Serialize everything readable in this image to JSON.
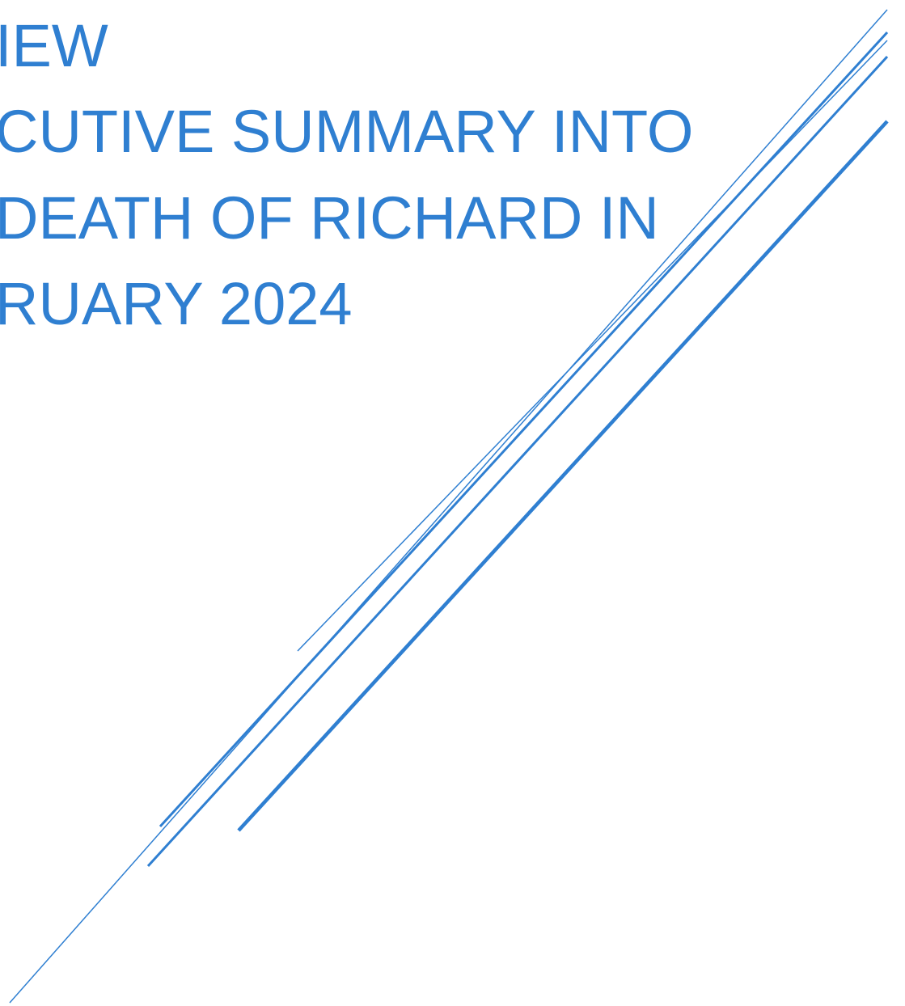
{
  "document": {
    "title_lines": [
      "IEW",
      "CUTIVE SUMMARY INTO",
      "DEATH OF RICHARD IN",
      "RUARY 2024"
    ]
  },
  "colors": {
    "accent": "#2f7fd1",
    "background": "#ffffff"
  }
}
